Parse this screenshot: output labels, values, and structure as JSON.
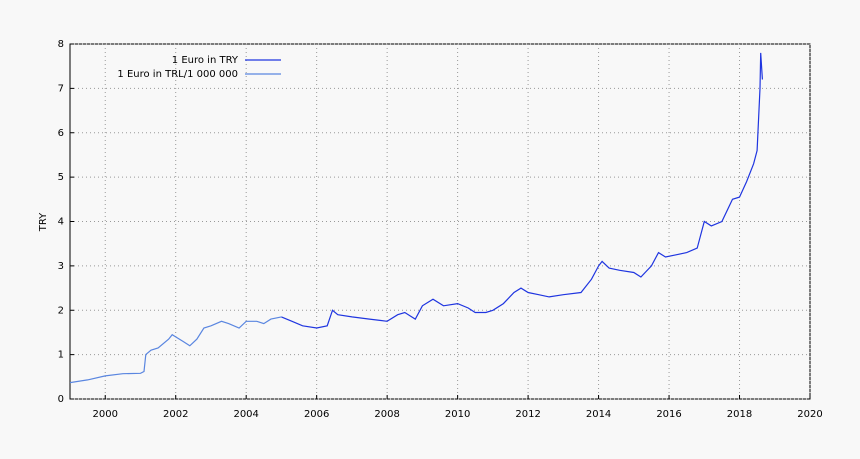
{
  "chart_data": {
    "type": "line",
    "ylabel": "TRY",
    "xlim": [
      1999,
      2020
    ],
    "xticks": [
      2000,
      2002,
      2004,
      2006,
      2008,
      2010,
      2012,
      2014,
      2016,
      2018,
      2020
    ],
    "ylim": [
      0,
      8
    ],
    "yticks": [
      0,
      1,
      2,
      3,
      4,
      5,
      6,
      7,
      8
    ],
    "grid": true,
    "legend": "top-left",
    "series": [
      {
        "name": "1 Euro in TRY",
        "color": "#1f35e0",
        "x": [
          2005.0,
          2005.3,
          2005.6,
          2006.0,
          2006.3,
          2006.45,
          2006.6,
          2007.0,
          2007.5,
          2008.0,
          2008.3,
          2008.5,
          2008.8,
          2009.0,
          2009.3,
          2009.6,
          2010.0,
          2010.3,
          2010.5,
          2010.8,
          2011.0,
          2011.3,
          2011.6,
          2011.8,
          2012.0,
          2012.3,
          2012.6,
          2013.0,
          2013.5,
          2013.8,
          2014.0,
          2014.1,
          2014.3,
          2014.6,
          2015.0,
          2015.2,
          2015.5,
          2015.7,
          2015.9,
          2016.2,
          2016.5,
          2016.8,
          2017.0,
          2017.2,
          2017.5,
          2017.8,
          2018.0,
          2018.2,
          2018.4,
          2018.5,
          2018.58,
          2018.6,
          2018.65
        ],
        "values": [
          1.85,
          1.75,
          1.65,
          1.6,
          1.65,
          2.0,
          1.9,
          1.85,
          1.8,
          1.75,
          1.9,
          1.95,
          1.8,
          2.1,
          2.25,
          2.1,
          2.15,
          2.05,
          1.95,
          1.95,
          2.0,
          2.15,
          2.4,
          2.5,
          2.4,
          2.35,
          2.3,
          2.35,
          2.4,
          2.7,
          3.0,
          3.1,
          2.95,
          2.9,
          2.85,
          2.75,
          3.0,
          3.3,
          3.2,
          3.25,
          3.3,
          3.4,
          4.0,
          3.9,
          4.0,
          4.5,
          4.55,
          4.9,
          5.3,
          5.6,
          7.0,
          7.8,
          7.2
        ]
      },
      {
        "name": "1 Euro in TRL/1 000 000",
        "color": "#5a86e0",
        "x": [
          1999.0,
          1999.5,
          2000.0,
          2000.5,
          2001.0,
          2001.1,
          2001.15,
          2001.3,
          2001.5,
          2001.8,
          2001.9,
          2002.0,
          2002.2,
          2002.4,
          2002.6,
          2002.8,
          2003.0,
          2003.3,
          2003.5,
          2003.8,
          2004.0,
          2004.3,
          2004.5,
          2004.7,
          2005.0
        ],
        "values": [
          0.37,
          0.43,
          0.52,
          0.57,
          0.58,
          0.62,
          1.0,
          1.1,
          1.15,
          1.35,
          1.45,
          1.4,
          1.3,
          1.2,
          1.35,
          1.6,
          1.65,
          1.75,
          1.7,
          1.6,
          1.75,
          1.75,
          1.7,
          1.8,
          1.85
        ]
      }
    ]
  }
}
